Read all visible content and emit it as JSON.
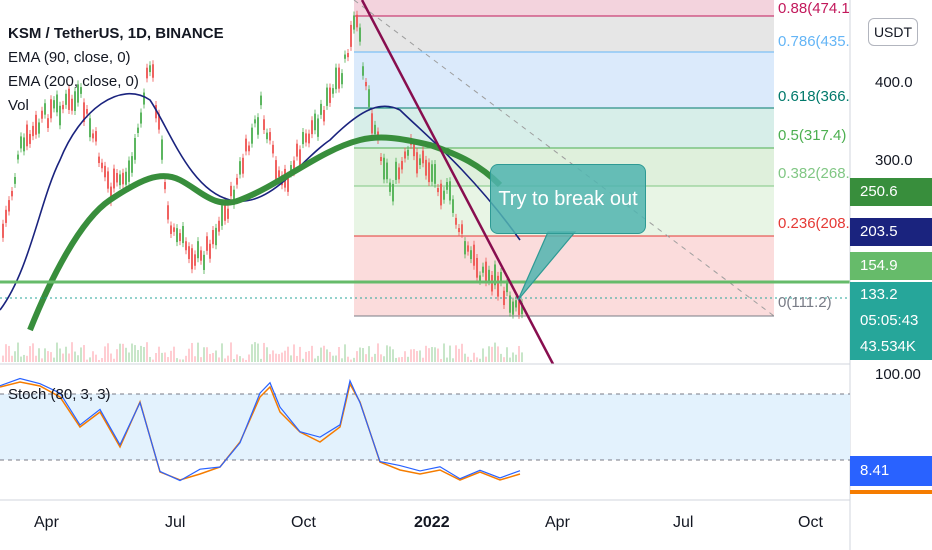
{
  "header": {
    "symbol_title": "KSM / TetherUS, 1D, BINANCE",
    "indicators": [
      "EMA (90, close, 0)",
      "EMA (200, close, 0)",
      "Vol"
    ]
  },
  "currency_button": "USDT",
  "price_axis": {
    "labels": [
      "400.0",
      "300.0"
    ]
  },
  "price_tags": [
    {
      "text": "250.6",
      "color": "#388e3c"
    },
    {
      "text": "203.5",
      "color": "#1a237e"
    },
    {
      "text": "154.9",
      "color": "#66bb6a"
    },
    {
      "text": "133.2",
      "color": "#26a69a"
    },
    {
      "text": "05:05:43",
      "color": "#26a69a"
    },
    {
      "text": "43.534K",
      "color": "#26a69a"
    }
  ],
  "fib_levels": [
    {
      "label": "0.88(474.1",
      "color": "#c2185b"
    },
    {
      "label": "0.786(435.",
      "color": "#64b5f6"
    },
    {
      "label": "0.618(366.",
      "color": "#00796b"
    },
    {
      "label": "0.5(317.4)",
      "color": "#4caf50"
    },
    {
      "label": "0.382(268.",
      "color": "#81c784"
    },
    {
      "label": "0.236(208.",
      "color": "#e53935"
    },
    {
      "label": "0(111.2)",
      "color": "#787b86"
    }
  ],
  "annotation": {
    "text": "Try to break out"
  },
  "stochastic": {
    "legend": "Stoch (80, 3, 3)",
    "axis_top": "100.00",
    "current_value": "8.41"
  },
  "time_axis": {
    "labels": [
      {
        "text": "Apr",
        "bold": false
      },
      {
        "text": "Jul",
        "bold": false
      },
      {
        "text": "Oct",
        "bold": false
      },
      {
        "text": "2022",
        "bold": true
      },
      {
        "text": "Apr",
        "bold": false
      },
      {
        "text": "Jul",
        "bold": false
      },
      {
        "text": "Oct",
        "bold": false
      }
    ]
  }
}
